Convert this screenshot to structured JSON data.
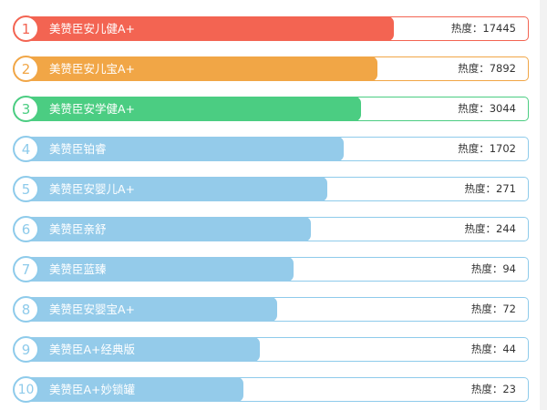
{
  "ranking": {
    "heat_prefix": "热度：",
    "items": [
      {
        "rank": "1",
        "name": "美赞臣安儿健A+",
        "heat": "17445",
        "heat_value": 17445,
        "color": "#f36452",
        "border_color": "#f36452"
      },
      {
        "rank": "2",
        "name": "美赞臣安儿宝A+",
        "heat": "7892",
        "heat_value": 7892,
        "color": "#f1a646",
        "border_color": "#f1a646"
      },
      {
        "rank": "3",
        "name": "美赞臣安学健A+",
        "heat": "3044",
        "heat_value": 3044,
        "color": "#4bcd82",
        "border_color": "#4bcd82"
      },
      {
        "rank": "4",
        "name": "美赞臣铂睿",
        "heat": "1702",
        "heat_value": 1702,
        "color": "#94cbea",
        "border_color": "#8ecbeb"
      },
      {
        "rank": "5",
        "name": "美赞臣安婴儿A+",
        "heat": "271",
        "heat_value": 271,
        "color": "#94cbea",
        "border_color": "#8ecbeb"
      },
      {
        "rank": "6",
        "name": "美赞臣亲舒",
        "heat": "244",
        "heat_value": 244,
        "color": "#94cbea",
        "border_color": "#8ecbeb"
      },
      {
        "rank": "7",
        "name": "美赞臣蓝臻",
        "heat": "94",
        "heat_value": 94,
        "color": "#94cbea",
        "border_color": "#8ecbeb"
      },
      {
        "rank": "8",
        "name": "美赞臣安婴宝A+",
        "heat": "72",
        "heat_value": 72,
        "color": "#94cbea",
        "border_color": "#8ecbeb"
      },
      {
        "rank": "9",
        "name": "美赞臣A+经典版",
        "heat": "44",
        "heat_value": 44,
        "color": "#94cbea",
        "border_color": "#8ecbeb"
      },
      {
        "rank": "10",
        "name": "美赞臣A+妙锁罐",
        "heat": "23",
        "heat_value": 23,
        "color": "#94cbea",
        "border_color": "#8ecbeb"
      }
    ]
  }
}
